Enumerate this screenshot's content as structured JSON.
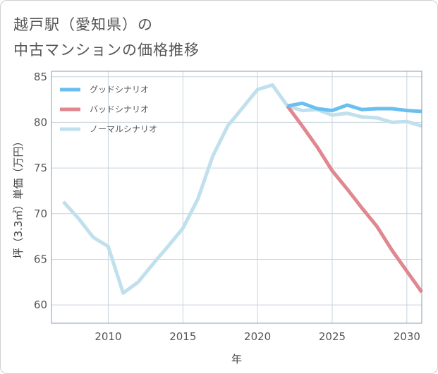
{
  "title": {
    "line1": "越戸駅（愛知県）の",
    "line2": "中古マンションの価格推移"
  },
  "colors": {
    "good": "#6bbff0",
    "bad": "#e0878f",
    "normal": "#bfe0ec",
    "grid": "#c7d3dc",
    "frame": "#8a9db0"
  },
  "chart_data": {
    "type": "line",
    "xlabel": "年",
    "ylabel": "坪（3.3㎡）単価（万円）",
    "xlim": [
      2006.2,
      2031
    ],
    "ylim": [
      58,
      85.6
    ],
    "xticks": [
      2010,
      2015,
      2020,
      2025,
      2030
    ],
    "yticks": [
      60,
      65,
      70,
      75,
      80,
      85
    ],
    "grid": true,
    "legend_position": "top-left",
    "series": [
      {
        "name": "グッドシナリオ",
        "color_key": "good",
        "x": [
          2022,
          2023,
          2024,
          2025,
          2026,
          2027,
          2028,
          2029,
          2030,
          2031
        ],
        "y": [
          81.8,
          82.1,
          81.5,
          81.3,
          81.9,
          81.4,
          81.5,
          81.5,
          81.3,
          81.2
        ]
      },
      {
        "name": "バッドシナリオ",
        "color_key": "bad",
        "x": [
          2022,
          2023,
          2024,
          2025,
          2026,
          2027,
          2028,
          2029,
          2030,
          2031
        ],
        "y": [
          81.8,
          79.6,
          77.3,
          74.7,
          72.7,
          70.6,
          68.6,
          66.0,
          63.7,
          61.4
        ]
      },
      {
        "name": "ノーマルシナリオ",
        "color_key": "normal",
        "x": [
          2007,
          2008,
          2009,
          2010,
          2011,
          2012,
          2013,
          2014,
          2015,
          2016,
          2017,
          2018,
          2019,
          2020,
          2021,
          2022,
          2023,
          2024,
          2025,
          2026,
          2027,
          2028,
          2029,
          2030,
          2031
        ],
        "y": [
          71.3,
          69.5,
          67.4,
          66.4,
          61.3,
          62.5,
          64.5,
          66.4,
          68.4,
          71.6,
          76.3,
          79.6,
          81.6,
          83.6,
          84.1,
          81.8,
          81.3,
          81.4,
          80.8,
          81.0,
          80.6,
          80.5,
          80.0,
          80.1,
          79.6
        ]
      }
    ]
  }
}
